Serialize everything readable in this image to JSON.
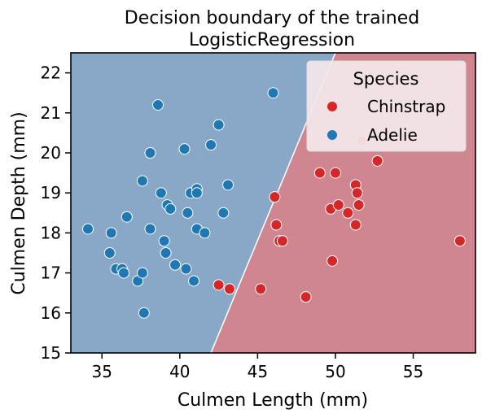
{
  "chart_data": {
    "type": "scatter",
    "title_lines": [
      "Decision boundary of the trained",
      "LogisticRegression"
    ],
    "xlabel": "Culmen Length (mm)",
    "ylabel": "Culmen Depth (mm)",
    "xlim": [
      33,
      59
    ],
    "ylim": [
      15,
      22.5
    ],
    "xticks": [
      35,
      40,
      45,
      50,
      55
    ],
    "yticks": [
      15,
      16,
      17,
      18,
      19,
      20,
      21,
      22
    ],
    "grid": false,
    "legend": {
      "title": "Species",
      "placement": "top-right"
    },
    "colors": {
      "adelie_region": "#89a8c7",
      "chinstrap_region": "#cf8690",
      "adelie_point": "#1f77b4",
      "chinstrap_point": "#d62728",
      "boundary": "#ffffff"
    },
    "decision_boundary": [
      [
        42.0,
        15.0
      ],
      [
        50.0,
        22.5
      ]
    ],
    "series": [
      {
        "name": "Chinstrap",
        "points": [
          [
            42.5,
            16.7
          ],
          [
            43.2,
            16.6
          ],
          [
            45.2,
            16.6
          ],
          [
            46.1,
            18.9
          ],
          [
            46.2,
            18.2
          ],
          [
            46.4,
            17.8
          ],
          [
            46.6,
            17.8
          ],
          [
            48.1,
            16.4
          ],
          [
            49.0,
            19.5
          ],
          [
            49.7,
            18.6
          ],
          [
            49.8,
            17.3
          ],
          [
            50.0,
            19.5
          ],
          [
            50.2,
            18.7
          ],
          [
            50.8,
            18.5
          ],
          [
            51.3,
            19.2
          ],
          [
            51.3,
            18.2
          ],
          [
            51.4,
            19.0
          ],
          [
            51.5,
            18.7
          ],
          [
            51.7,
            20.3
          ],
          [
            52.7,
            19.8
          ],
          [
            58.0,
            17.8
          ]
        ]
      },
      {
        "name": "Adelie",
        "points": [
          [
            34.1,
            18.1
          ],
          [
            35.5,
            17.5
          ],
          [
            35.6,
            18.0
          ],
          [
            35.9,
            17.1
          ],
          [
            36.3,
            17.1
          ],
          [
            36.4,
            17.0
          ],
          [
            36.6,
            18.4
          ],
          [
            37.3,
            16.8
          ],
          [
            37.6,
            17.0
          ],
          [
            37.6,
            19.3
          ],
          [
            37.7,
            16.0
          ],
          [
            38.1,
            20.0
          ],
          [
            38.1,
            18.1
          ],
          [
            38.6,
            21.2
          ],
          [
            38.8,
            19.0
          ],
          [
            39.0,
            17.8
          ],
          [
            39.1,
            17.5
          ],
          [
            39.2,
            18.7
          ],
          [
            39.4,
            18.6
          ],
          [
            39.7,
            17.2
          ],
          [
            40.3,
            20.1
          ],
          [
            40.4,
            17.1
          ],
          [
            40.5,
            18.5
          ],
          [
            40.7,
            19.0
          ],
          [
            40.9,
            16.8
          ],
          [
            41.1,
            19.1
          ],
          [
            41.1,
            19.0
          ],
          [
            41.1,
            18.1
          ],
          [
            41.6,
            18.0
          ],
          [
            42.0,
            20.2
          ],
          [
            42.5,
            20.7
          ],
          [
            42.8,
            18.5
          ],
          [
            43.1,
            19.2
          ],
          [
            46.0,
            21.5
          ]
        ]
      }
    ]
  }
}
